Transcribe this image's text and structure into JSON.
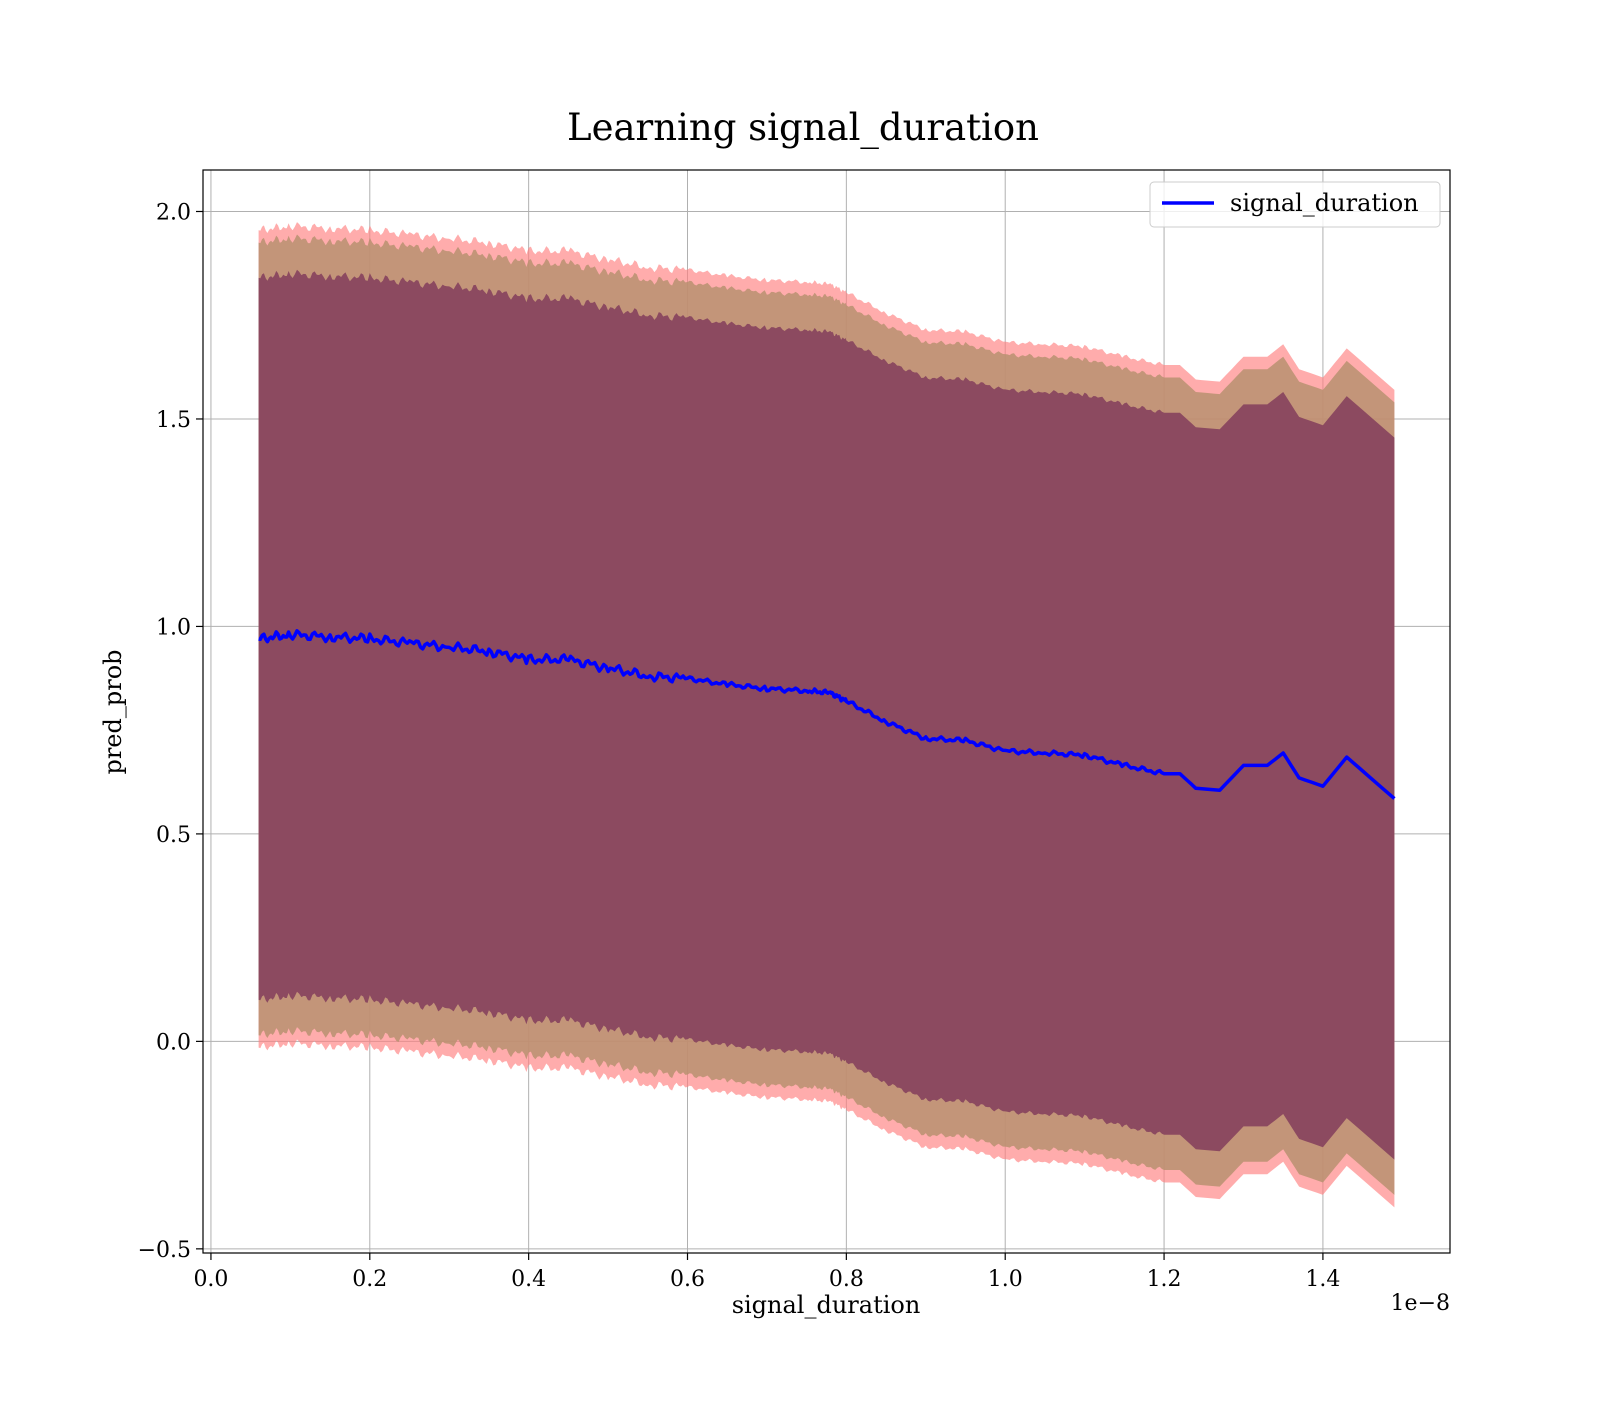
{
  "chart_data": {
    "type": "line",
    "title": "Learning signal_duration",
    "xlabel": "signal_duration",
    "ylabel": "pred_prob",
    "x_offset_label": "1e−8",
    "xlim": [
      -0.01,
      1.56
    ],
    "ylim": [
      -0.51,
      2.1
    ],
    "xticks": [
      0.0,
      0.2,
      0.4,
      0.6,
      0.8,
      1.0,
      1.2,
      1.4
    ],
    "xtick_labels": [
      "0.0",
      "0.2",
      "0.4",
      "0.6",
      "0.8",
      "1.0",
      "1.2",
      "1.4"
    ],
    "yticks": [
      -0.5,
      0.0,
      0.5,
      1.0,
      1.5,
      2.0
    ],
    "ytick_labels": [
      "−0.5",
      "0.0",
      "0.5",
      "1.0",
      "1.5",
      "2.0"
    ],
    "grid": true,
    "legend": {
      "position": "top-right",
      "entries": [
        "signal_duration"
      ]
    },
    "colors": {
      "line": "#0000ff",
      "outer_band": "#ff7f7f",
      "middle_band": "#b89070",
      "inner_band": "#8c4a60",
      "grid": "#b0b0b0"
    },
    "series": [
      {
        "name": "signal_duration",
        "x": [
          0.06,
          0.1,
          0.15,
          0.2,
          0.25,
          0.3,
          0.35,
          0.4,
          0.45,
          0.5,
          0.55,
          0.6,
          0.65,
          0.7,
          0.75,
          0.78,
          0.8,
          0.85,
          0.9,
          0.95,
          1.0,
          1.05,
          1.1,
          1.15,
          1.2,
          1.22,
          1.24,
          1.27,
          1.3,
          1.33,
          1.35,
          1.37,
          1.4,
          1.43,
          1.49
        ],
        "y": [
          0.97,
          0.98,
          0.975,
          0.97,
          0.96,
          0.95,
          0.94,
          0.92,
          0.92,
          0.9,
          0.88,
          0.875,
          0.86,
          0.85,
          0.845,
          0.84,
          0.82,
          0.77,
          0.73,
          0.725,
          0.7,
          0.695,
          0.69,
          0.665,
          0.645,
          0.645,
          0.61,
          0.605,
          0.665,
          0.665,
          0.695,
          0.635,
          0.615,
          0.685,
          0.585
        ]
      }
    ],
    "bands": [
      {
        "name": "outer",
        "half_width": 0.985
      },
      {
        "name": "middle",
        "half_width": 0.955
      },
      {
        "name": "inner",
        "half_width": 0.87
      }
    ]
  }
}
